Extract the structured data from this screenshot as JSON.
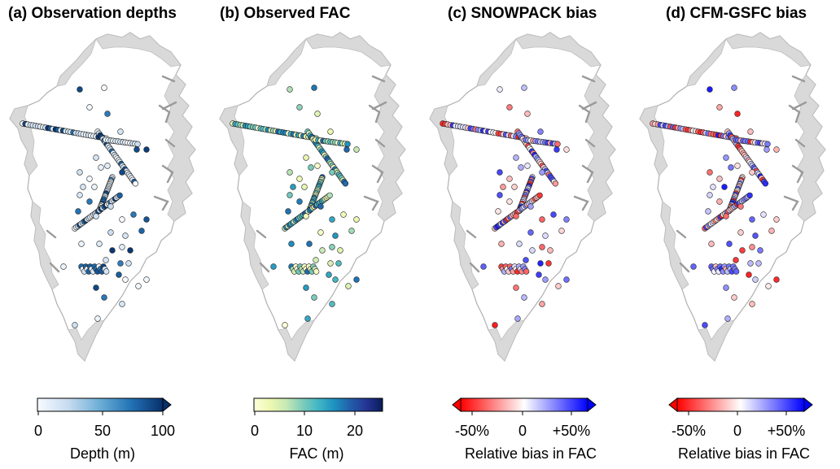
{
  "panels": [
    {
      "title": "(a) Observation depths",
      "colorbar": {
        "label": "Depth (m)",
        "ticks": [
          "0",
          "50",
          "100"
        ],
        "colors": [
          "#f7fbff",
          "#c6dbef",
          "#6baed6",
          "#2171b5",
          "#08306b"
        ],
        "extend": "max"
      }
    },
    {
      "title": "(b) Observed FAC",
      "colorbar": {
        "label": "FAC (m)",
        "ticks": [
          "0",
          "10",
          "20"
        ],
        "colors": [
          "#ffffd9",
          "#edf8b1",
          "#c7e9b4",
          "#7fcdbb",
          "#41b6c4",
          "#1d91c0",
          "#225ea8",
          "#253494",
          "#081d58"
        ],
        "extend": "none"
      }
    },
    {
      "title": "(c) SNOWPACK bias",
      "colorbar": {
        "label": "Relative bias in FAC",
        "ticks": [
          "-50%",
          "0",
          "+50%"
        ],
        "colors": [
          "#ff0000",
          "#ffffff",
          "#0000ff"
        ],
        "extend": "both"
      }
    },
    {
      "title": "(d) CFM-GSFC bias",
      "colorbar": {
        "label": "Relative bias in FAC",
        "ticks": [
          "-50%",
          "0",
          "+50%"
        ],
        "colors": [
          "#ff0000",
          "#ffffff",
          "#0000ff"
        ],
        "extend": "both"
      }
    }
  ]
}
